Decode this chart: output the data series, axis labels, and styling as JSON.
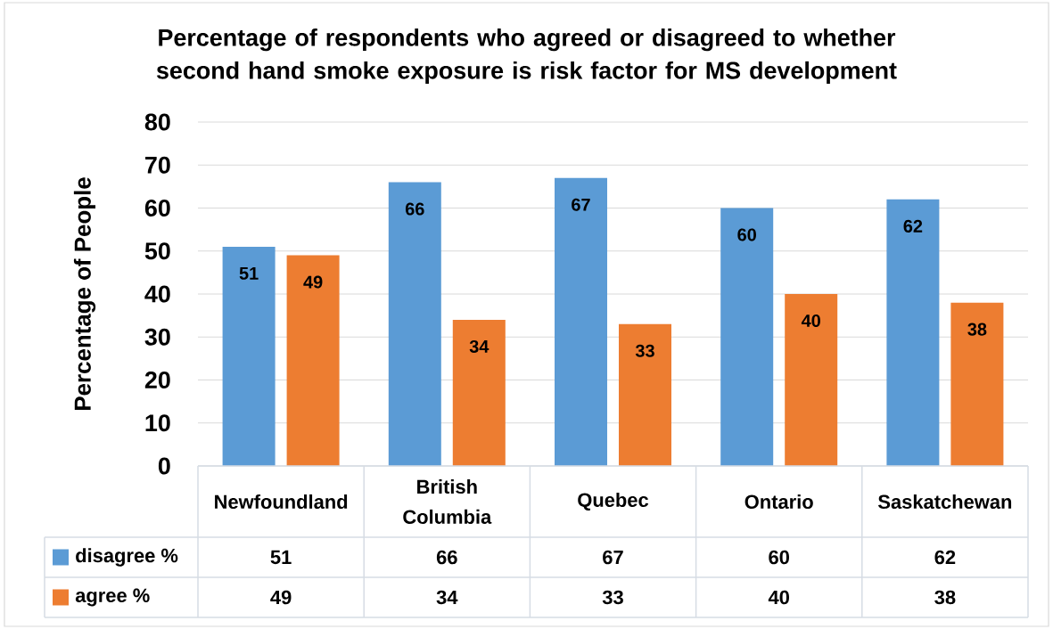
{
  "chart_data": {
    "type": "bar",
    "title": "Percentage of respondents who agreed or disagreed to whether second hand smoke exposure is risk factor for MS development",
    "ylabel": "Percentage of People",
    "categories": [
      "Newfoundland",
      "British Columbia",
      "Quebec",
      "Ontario",
      "Saskatchewan"
    ],
    "series": [
      {
        "name": "disagree %",
        "color": "#5b9bd5",
        "values": [
          51,
          66,
          67,
          60,
          62
        ]
      },
      {
        "name": "agree %",
        "color": "#ed7d31",
        "values": [
          49,
          34,
          33,
          40,
          38
        ]
      }
    ],
    "ylim": [
      0,
      80
    ],
    "yticks": [
      0,
      10,
      20,
      30,
      40,
      50,
      60,
      70,
      80
    ],
    "grid": "y",
    "legend": "bottom",
    "data_labels": true,
    "annotations": [
      "51",
      "66",
      "67",
      "60",
      "62",
      "49",
      "34",
      "33",
      "40",
      "38"
    ]
  }
}
